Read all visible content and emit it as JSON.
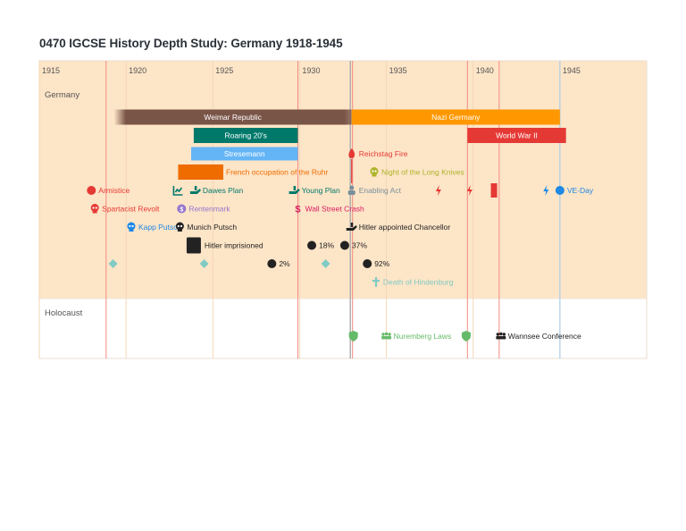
{
  "title": "0470 IGCSE History Depth Study: Germany 1918-1945",
  "chart_data": {
    "type": "timeline",
    "x_range": [
      1915,
      1950
    ],
    "ticks": [
      1915,
      1920,
      1925,
      1930,
      1935,
      1940,
      1945
    ],
    "groups": [
      {
        "id": "germany",
        "label": "Germany"
      },
      {
        "id": "holocaust",
        "label": "Holocaust"
      }
    ],
    "markers": [
      {
        "year": 1918.85,
        "color": "#f28b82"
      },
      {
        "year": 1929.9,
        "color": "#f28b82"
      },
      {
        "year": 1933.05,
        "color": "#f28b82"
      },
      {
        "year": 1939.67,
        "color": "#f28b82"
      },
      {
        "year": 1941.5,
        "color": "#f28b82"
      },
      {
        "year": 1945.0,
        "color": "#9ecbf0"
      }
    ],
    "spans": [
      {
        "label": "Weimar Republic",
        "start": 1919.3,
        "end": 1933.0,
        "row": 0,
        "color": "#795548",
        "text_color": "#ffffff",
        "label_inside": true,
        "fade_left": true
      },
      {
        "label": "Nazi Germany",
        "start": 1933.0,
        "end": 1945.0,
        "row": 0,
        "color": "#ff9800",
        "text_color": "#ffffff",
        "label_inside": true
      },
      {
        "label": "Roaring 20's",
        "start": 1923.9,
        "end": 1929.9,
        "row": 1,
        "color": "#00796b",
        "text_color": "#ffffff",
        "label_inside": true
      },
      {
        "label": "World War II",
        "start": 1939.67,
        "end": 1945.35,
        "row": 1,
        "color": "#e53935",
        "text_color": "#ffffff",
        "label_inside": true
      },
      {
        "label": "Stresemann",
        "start": 1923.75,
        "end": 1929.9,
        "row": 2,
        "color": "#64b5f6",
        "text_color": "#ffffff",
        "label_inside": true
      },
      {
        "label": "French occupation of the Ruhr",
        "start": 1923.0,
        "end": 1925.6,
        "row": 3,
        "color": "#ef6c00",
        "text_color": "#ef6c00",
        "label_inside": false
      }
    ],
    "events": [
      {
        "label": "Reichstag Fire",
        "year": 1933.0,
        "row": 2,
        "icon": "fire",
        "color": "#e53935",
        "text_color": "#e53935"
      },
      {
        "label": "Night of the Long Knives",
        "year": 1934.3,
        "row": 3,
        "icon": "skull",
        "color": "#afb42b",
        "text_color": "#afb42b"
      },
      {
        "label": "Armistice",
        "year": 1918.0,
        "row": 4,
        "icon": "dot",
        "color": "#e53935",
        "text_color": "#e53935"
      },
      {
        "label": "",
        "year": 1923.0,
        "row": 4,
        "icon": "chart",
        "color": "#00796b",
        "text_color": "#00796b"
      },
      {
        "label": "Dawes Plan",
        "year": 1924.0,
        "row": 4,
        "icon": "hand",
        "color": "#00796b",
        "text_color": "#00796b"
      },
      {
        "label": "Young Plan",
        "year": 1929.7,
        "row": 4,
        "icon": "hand",
        "color": "#00796b",
        "text_color": "#00796b"
      },
      {
        "label": "Enabling Act",
        "year": 1933.0,
        "row": 4,
        "icon": "person",
        "color": "#78909c",
        "text_color": "#78909c"
      },
      {
        "label": "",
        "year": 1938.0,
        "row": 4,
        "icon": "bolt",
        "color": "#e53935",
        "text_color": "#e53935"
      },
      {
        "label": "",
        "year": 1939.8,
        "row": 4,
        "icon": "bolt",
        "color": "#e53935",
        "text_color": "#e53935"
      },
      {
        "label": "",
        "year": 1941.2,
        "row": 4,
        "icon": "bar",
        "color": "#e53935",
        "text_color": "#e53935"
      },
      {
        "label": "",
        "year": 1944.2,
        "row": 4,
        "icon": "bolt",
        "color": "#1e88e5",
        "text_color": "#1e88e5"
      },
      {
        "label": "VE-Day",
        "year": 1945.0,
        "row": 4,
        "icon": "dot",
        "color": "#1e88e5",
        "text_color": "#1e88e5"
      },
      {
        "label": "Spartacist Revolt",
        "year": 1918.2,
        "row": 5,
        "icon": "skull",
        "color": "#e53935",
        "text_color": "#e53935"
      },
      {
        "label": "Rentenmark",
        "year": 1923.2,
        "row": 5,
        "icon": "coin",
        "color": "#9575cd",
        "text_color": "#9575cd"
      },
      {
        "label": "Wall Street Crash",
        "year": 1929.9,
        "row": 5,
        "icon": "dollar",
        "color": "#d81b60",
        "text_color": "#d81b60"
      },
      {
        "label": "Kapp Putsch",
        "year": 1920.3,
        "row": 6,
        "icon": "skull",
        "color": "#1e88e5",
        "text_color": "#1e88e5"
      },
      {
        "label": "Munich Putsch",
        "year": 1923.1,
        "row": 6,
        "icon": "skull",
        "color": "#222222",
        "text_color": "#222222"
      },
      {
        "label": "Hitler appointed Chancellor",
        "year": 1933.0,
        "row": 6,
        "icon": "hand",
        "color": "#222222",
        "text_color": "#222222"
      },
      {
        "label": "Hitler imprisioned",
        "year": 1923.9,
        "row": 7,
        "icon": "square",
        "color": "#222222",
        "text_color": "#222222"
      },
      {
        "label": "18%",
        "year": 1930.7,
        "row": 7,
        "icon": "dot",
        "color": "#222222",
        "text_color": "#222222"
      },
      {
        "label": "37%",
        "year": 1932.6,
        "row": 7,
        "icon": "dot",
        "color": "#222222",
        "text_color": "#222222"
      },
      {
        "label": "",
        "year": 1919.25,
        "row": 8,
        "icon": "diamond",
        "color": "#80cbc4",
        "text_color": "#80cbc4"
      },
      {
        "label": "",
        "year": 1924.5,
        "row": 8,
        "icon": "diamond",
        "color": "#80cbc4",
        "text_color": "#80cbc4"
      },
      {
        "label": "2%",
        "year": 1928.4,
        "row": 8,
        "icon": "dot",
        "color": "#222222",
        "text_color": "#222222"
      },
      {
        "label": "",
        "year": 1931.5,
        "row": 8,
        "icon": "diamond",
        "color": "#80cbc4",
        "text_color": "#80cbc4"
      },
      {
        "label": "92%",
        "year": 1933.9,
        "row": 8,
        "icon": "dot",
        "color": "#222222",
        "text_color": "#222222"
      },
      {
        "label": "Death of Hindenburg",
        "year": 1934.4,
        "row": 9,
        "icon": "cross",
        "color": "#80cbc4",
        "text_color": "#80cbc4"
      },
      {
        "label": "",
        "year": 1933.1,
        "row": 10,
        "icon": "shield",
        "color": "#66bb6a",
        "text_color": "#66bb6a"
      },
      {
        "label": "Nuremberg Laws",
        "year": 1935.0,
        "row": 10,
        "icon": "people",
        "color": "#66bb6a",
        "text_color": "#66bb6a"
      },
      {
        "label": "",
        "year": 1939.6,
        "row": 10,
        "icon": "shield",
        "color": "#66bb6a",
        "text_color": "#66bb6a"
      },
      {
        "label": "Wannsee Conference",
        "year": 1941.6,
        "row": 10,
        "icon": "people",
        "color": "#222222",
        "text_color": "#222222"
      }
    ]
  }
}
